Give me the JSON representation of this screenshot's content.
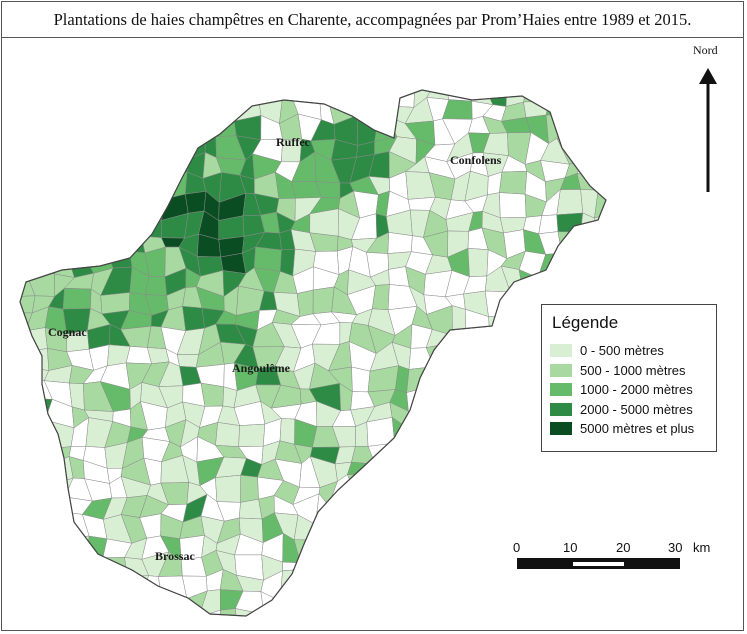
{
  "title": "Plantations de haies champêtres en Charente, accompagnées par Prom’Haies entre 1989 et 2015.",
  "north_label": "Nord",
  "towns": {
    "ruffec": "Ruffec",
    "confolens": "Confolens",
    "cognac": "Cognac",
    "angouleme": "Angoulême",
    "brossac": "Brossac"
  },
  "legend": {
    "title": "Légende",
    "items": [
      {
        "label": "0 - 500 mètres",
        "color": "#d9efd4"
      },
      {
        "label": "500 - 1000 mètres",
        "color": "#a7d9a0"
      },
      {
        "label": "1000 - 2000 mètres",
        "color": "#66bb6a"
      },
      {
        "label": "2000 - 5000 mètres",
        "color": "#2e8b45"
      },
      {
        "label": "5000 mètres et plus",
        "color": "#0b4d22"
      }
    ]
  },
  "scale_bar": {
    "ticks": [
      "0",
      "10",
      "20",
      "30"
    ],
    "unit": "km"
  },
  "colors": {
    "class0": "#ffffff",
    "class1": "#d9efd4",
    "class2": "#a7d9a0",
    "class3": "#66bb6a",
    "class4": "#2e8b45",
    "class5": "#0b4d22"
  }
}
